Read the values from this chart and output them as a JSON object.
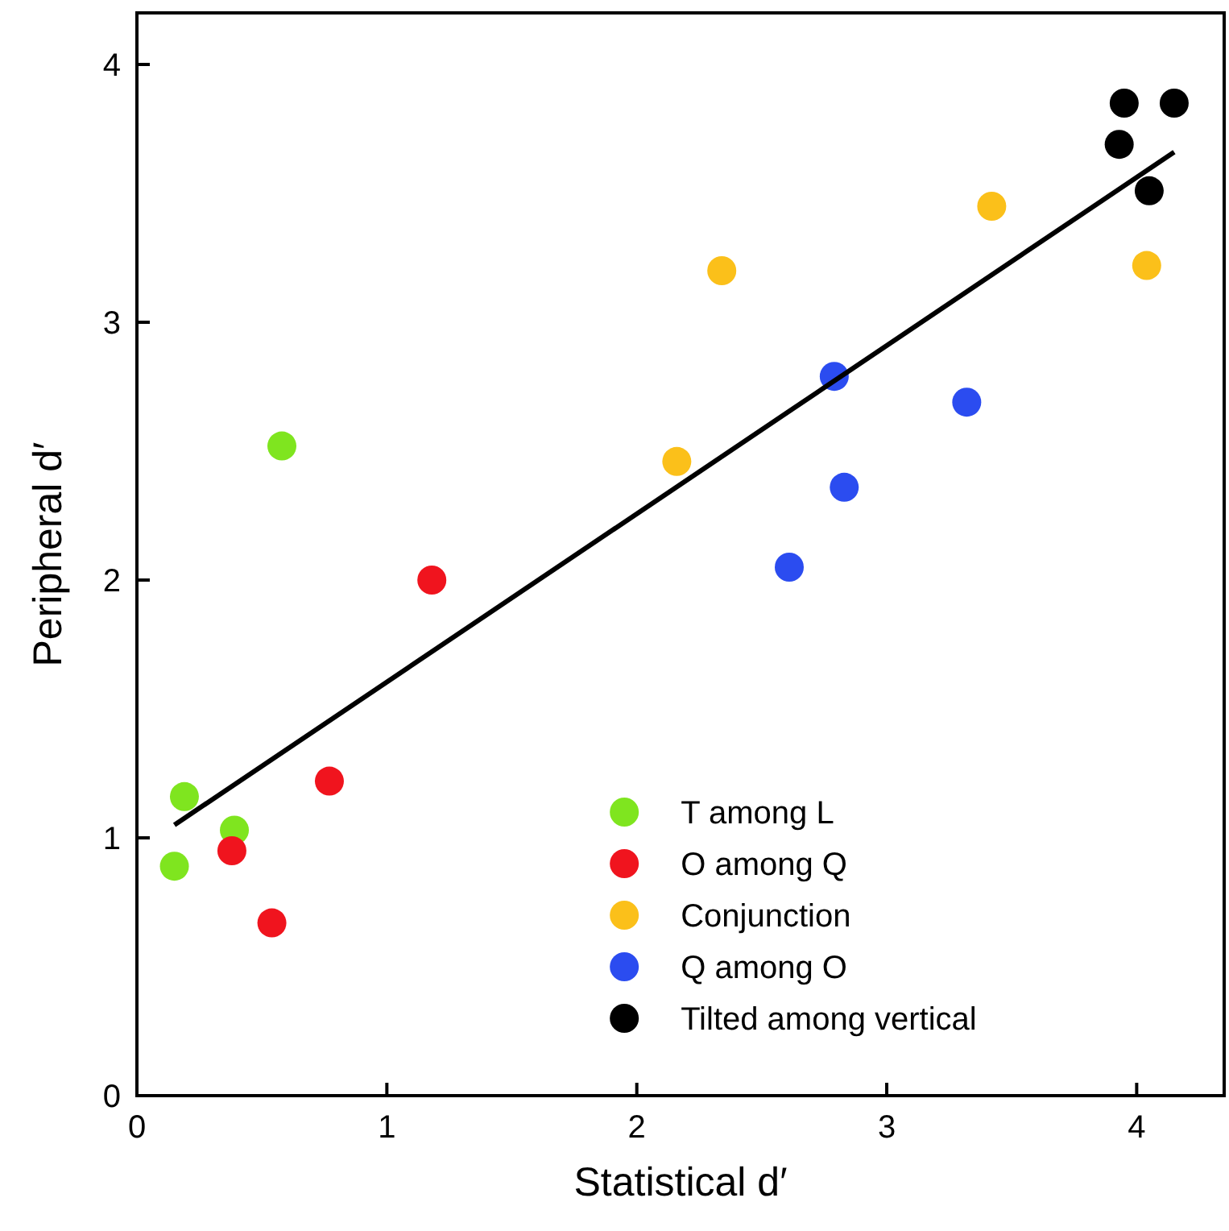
{
  "chart_data": {
    "type": "scatter",
    "xlabel": "Statistical d′",
    "ylabel": "Peripheral d′",
    "xlim": [
      0,
      4.35
    ],
    "ylim": [
      0,
      4.2
    ],
    "xticks": [
      0,
      1,
      2,
      3,
      4
    ],
    "yticks": [
      0,
      1,
      2,
      3,
      4
    ],
    "grid": false,
    "legend": "bottom right",
    "marker": "circle",
    "series": [
      {
        "name": "T among L",
        "color": "#7fe51f",
        "x": [
          0.15,
          0.19,
          0.39,
          0.58
        ],
        "values": [
          0.89,
          1.16,
          1.03,
          2.52
        ]
      },
      {
        "name": "O among Q",
        "color": "#f0141e",
        "x": [
          0.38,
          0.54,
          0.77,
          1.18
        ],
        "values": [
          0.95,
          0.67,
          1.22,
          2.0
        ]
      },
      {
        "name": "Conjunction",
        "color": "#fbc01a",
        "x": [
          2.16,
          2.34,
          3.42,
          4.04
        ],
        "values": [
          2.46,
          3.2,
          3.45,
          3.22
        ]
      },
      {
        "name": "Q among O",
        "color": "#2b4cf0",
        "x": [
          2.61,
          2.83,
          2.79,
          3.32
        ],
        "values": [
          2.05,
          2.36,
          2.79,
          2.69
        ]
      },
      {
        "name": "Tilted among vertical",
        "color": "#000000",
        "x": [
          3.93,
          3.95,
          4.05,
          4.15
        ],
        "values": [
          3.69,
          3.85,
          3.51,
          3.85
        ]
      },
      {
        "type": "line",
        "color": "#000000",
        "marker": "none",
        "line_style": "solid",
        "x": [
          0.15,
          4.15
        ],
        "values": [
          1.05,
          3.66
        ]
      }
    ]
  }
}
